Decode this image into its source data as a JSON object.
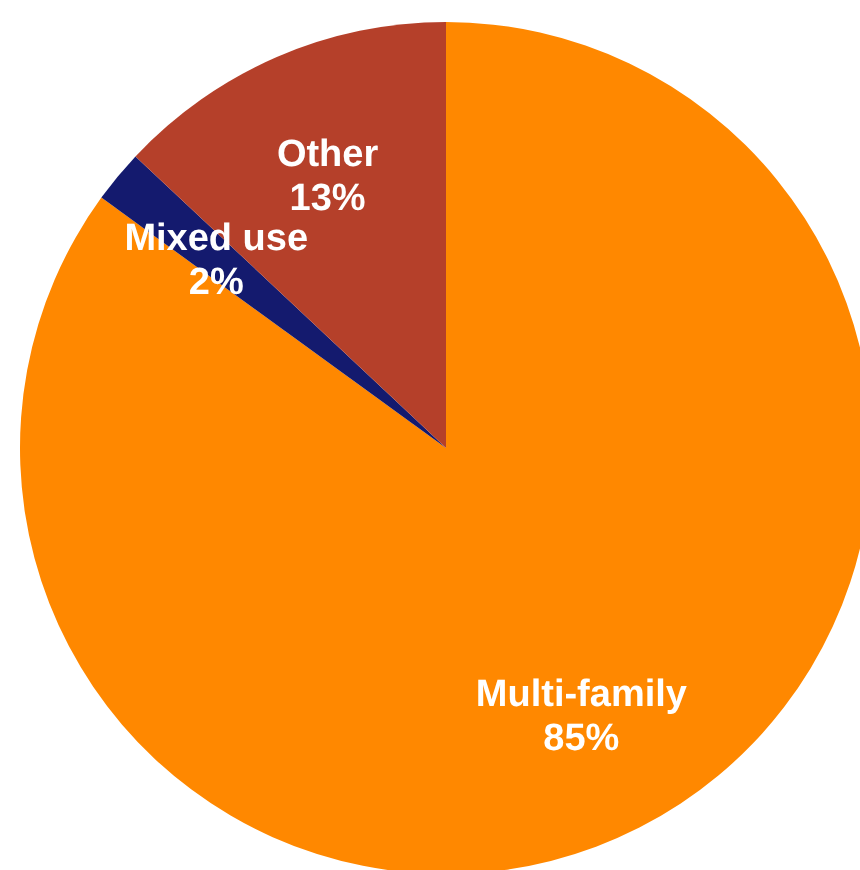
{
  "chart_data": {
    "type": "pie",
    "categories": [
      "Multi-family",
      "Mixed use",
      "Other"
    ],
    "values": [
      85,
      2,
      13
    ],
    "colors": [
      "#ff8800",
      "#141a6e",
      "#b5402a"
    ],
    "value_labels": [
      "85%",
      "2%",
      "13%"
    ]
  }
}
